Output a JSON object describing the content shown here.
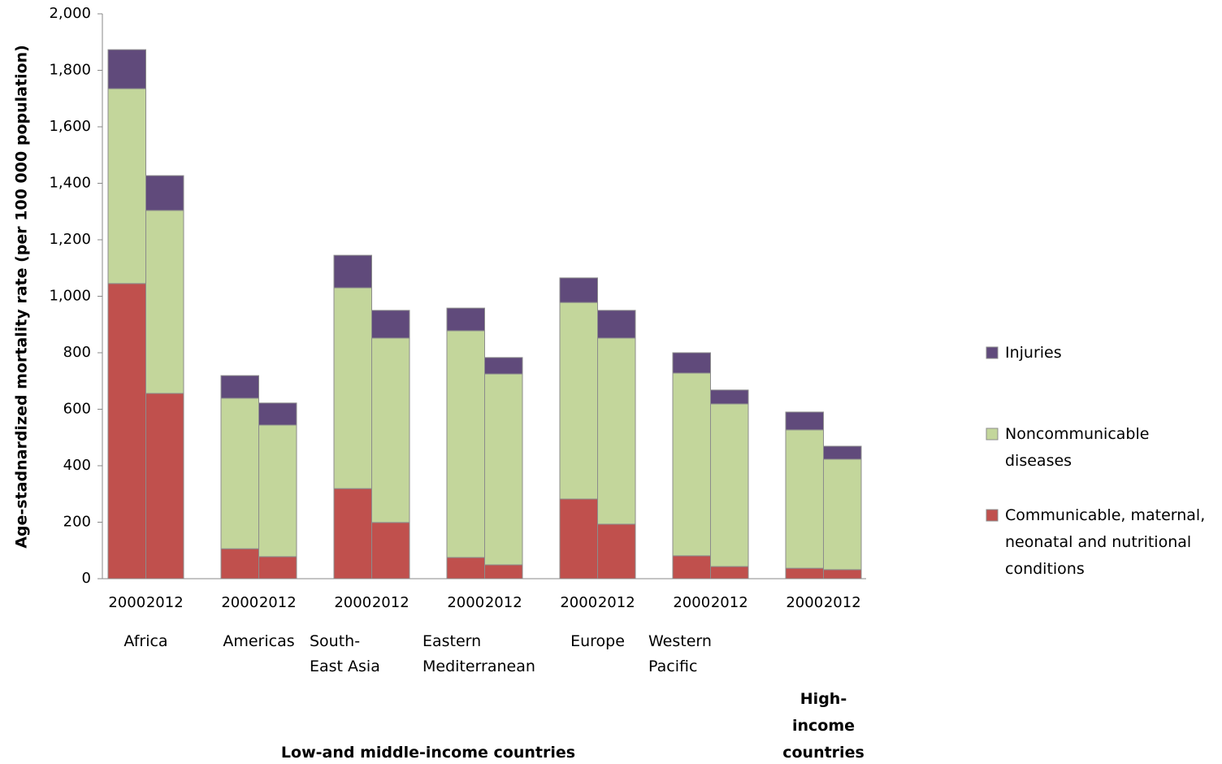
{
  "chart_data": {
    "type": "bar",
    "stacked": true,
    "y_label": "Age-stadnardized mortality rate (per 100 000 population)",
    "ylim": [
      0,
      2000
    ],
    "yticks": [
      0,
      200,
      400,
      600,
      800,
      {
        "value": 1000,
        "label": "1,000"
      },
      {
        "value": 1200,
        "label": "1,200"
      },
      {
        "value": 1400,
        "label": "1,400"
      },
      {
        "value": 1600,
        "label": "1,600"
      },
      {
        "value": 1800,
        "label": "1,800"
      },
      {
        "value": 2000,
        "label": "2,000"
      }
    ],
    "super_groups": [
      {
        "name": "Low- and middle-income countries",
        "groups": [
          {
            "name": "Africa",
            "categories": [
              "2000",
              "2012"
            ]
          },
          {
            "name": "Americas",
            "categories": [
              "2000",
              "2012"
            ]
          },
          {
            "name": "South-East Asia",
            "categories": [
              "2000",
              "2012"
            ]
          },
          {
            "name": "Eastern Mediterranean",
            "categories": [
              "2000",
              "2012"
            ]
          },
          {
            "name": "Europe",
            "categories": [
              "2000",
              "2012"
            ]
          },
          {
            "name": "Western Pacific",
            "categories": [
              "2000",
              "2012"
            ]
          }
        ]
      },
      {
        "name": "High-income countries",
        "groups": [
          {
            "name": null,
            "categories": [
              "2000",
              "2012"
            ]
          }
        ]
      }
    ],
    "series": [
      {
        "name": "Communicable, maternal, neonatal and nutritional conditions",
        "color": "#c0504d",
        "values": [
          1045,
          656,
          106,
          78,
          319,
          199,
          75,
          49,
          282,
          193,
          81,
          43,
          37,
          32
        ]
      },
      {
        "name": "Noncommunicable diseases",
        "color": "#c3d69b",
        "values": [
          690,
          648,
          533,
          466,
          711,
          653,
          803,
          676,
          696,
          659,
          647,
          576,
          490,
          391
        ]
      },
      {
        "name": "Injuries",
        "color": "#604a7b",
        "values": [
          138,
          123,
          80,
          78,
          115,
          98,
          80,
          58,
          87,
          98,
          72,
          49,
          63,
          46
        ]
      }
    ],
    "legend": "right"
  }
}
